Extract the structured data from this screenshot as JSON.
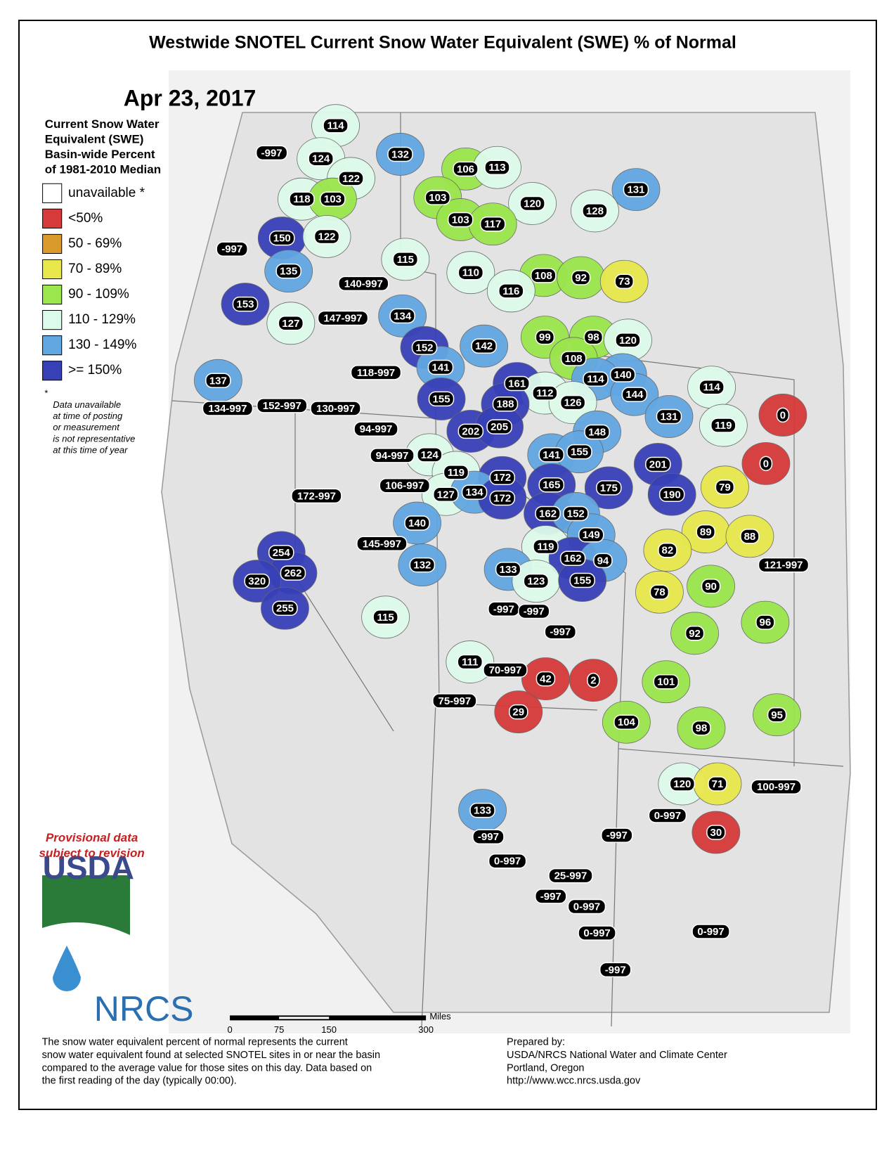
{
  "title": "Westwide SNOTEL Current Snow Water Equivalent (SWE) % of Normal",
  "date": "Apr 23, 2017",
  "legend": {
    "heading": [
      "Current Snow Water",
      "Equivalent (SWE)",
      "Basin-wide Percent",
      "of 1981-2010 Median"
    ],
    "items": [
      {
        "label": "unavailable *",
        "color": "#ffffff"
      },
      {
        "label": "<50%",
        "color": "#d63a3a"
      },
      {
        "label": "50 - 69%",
        "color": "#d99a2b"
      },
      {
        "label": "70 - 89%",
        "color": "#e8e84c"
      },
      {
        "label": "90 - 109%",
        "color": "#9be64c"
      },
      {
        "label": "110 - 129%",
        "color": "#ddfbea"
      },
      {
        "label": "130 - 149%",
        "color": "#62a6e2"
      },
      {
        "label": ">= 150%",
        "color": "#3840b8"
      }
    ]
  },
  "footnote": [
    "*",
    "Data unavailable",
    "at time of posting",
    "or measurement",
    "is not representative",
    "at this time of year"
  ],
  "provisional": [
    "Provisional data",
    "subject to revision"
  ],
  "logos": [
    "USDA",
    "NRCS"
  ],
  "scale": {
    "unit": "Miles",
    "ticks": [
      "0",
      "75",
      "150",
      "300"
    ]
  },
  "description": [
    "The snow water equivalent percent of normal represents the current",
    "snow water equivalent found at selected SNOTEL sites in or near the basin",
    "compared to the average value for those sites on this day. Data based on",
    "the first reading of the day (typically 00:00)."
  ],
  "prepared": [
    "Prepared by:",
    "USDA/NRCS National Water and Climate Center",
    "Portland, Oregon",
    "http://www.wcc.nrcs.usda.gov"
  ],
  "basin_labels": [
    "114",
    "-997",
    "124",
    "132",
    "106",
    "113",
    "122",
    "103",
    "118",
    "103",
    "120",
    "131",
    "128",
    "103",
    "117",
    "150",
    "122",
    "-997",
    "115",
    "135",
    "110",
    "108",
    "92",
    "73",
    "140-997",
    "116",
    "153",
    "134",
    "127",
    "147-997",
    "99",
    "98",
    "120",
    "152",
    "142",
    "141",
    "108",
    "118-997",
    "140",
    "137",
    "114",
    "161",
    "144",
    "114",
    "112",
    "155",
    "188",
    "126",
    "134-997",
    "152-997",
    "130-997",
    "0",
    "131",
    "119",
    "94-997",
    "202",
    "205",
    "148",
    "141",
    "155",
    "124",
    "94-997",
    "0",
    "201",
    "119",
    "172",
    "106-997",
    "165",
    "175",
    "79",
    "127",
    "134",
    "172",
    "172-997",
    "190",
    "162",
    "152",
    "89",
    "88",
    "140",
    "149",
    "254",
    "145-997",
    "82",
    "119",
    "162",
    "94",
    "262",
    "320",
    "132",
    "121-997",
    "133",
    "123",
    "155",
    "78",
    "90",
    "255",
    "-997",
    "-997",
    "115",
    "96",
    "92",
    "-997",
    "111",
    "70-997",
    "42",
    "2",
    "101",
    "75-997",
    "29",
    "95",
    "104",
    "98",
    "120",
    "71",
    "100-997",
    "133",
    "0-997",
    "-997",
    "-997",
    "30",
    "0-997",
    "25-997",
    "-997",
    "0-997",
    "0-997",
    "0-997",
    "-997"
  ]
}
